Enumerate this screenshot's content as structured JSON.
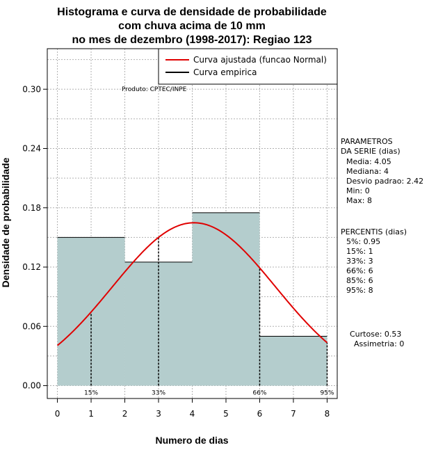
{
  "chart_data": {
    "type": "bar",
    "title": [
      "Histograma e curva de densidade de probabilidade",
      "com chuva acima de 10 mm",
      "no mes de dezembro (1998-2017): Regiao 123"
    ],
    "xlabel": "Numero de dias",
    "ylabel": "Densidade de probabilidade",
    "xlim": [
      -0.3,
      8.3
    ],
    "ylim": [
      -0.013,
      0.341
    ],
    "x_ticks": [
      "0",
      "1",
      "2",
      "3",
      "4",
      "5",
      "6",
      "7",
      "8"
    ],
    "y_ticks": [
      "0.00",
      "0.06",
      "0.12",
      "0.18",
      "0.24",
      "0.30"
    ],
    "bins": [
      {
        "start": 0,
        "end": 2,
        "density": 0.15
      },
      {
        "start": 2,
        "end": 4,
        "density": 0.125
      },
      {
        "start": 4,
        "end": 6,
        "density": 0.175
      },
      {
        "start": 6,
        "end": 8,
        "density": 0.05
      }
    ],
    "fitted_curve": {
      "mean": 4.05,
      "sd": 2.42,
      "x_range": [
        0,
        8
      ]
    },
    "percentile_markers": [
      {
        "x": 1,
        "label": "15%"
      },
      {
        "x": 3,
        "label": "33%"
      },
      {
        "x": 6,
        "label": "66%"
      },
      {
        "x": 8,
        "label": "95%"
      }
    ],
    "legend": {
      "position": "top-right",
      "entries": [
        {
          "label": "Curva ajustada (funcao Normal)",
          "color": "#e00000"
        },
        {
          "label": "Curva empirica",
          "color": "#000000"
        }
      ]
    },
    "annotations": {
      "product": "Produto: CPTEC/INPE",
      "parameters_title": [
        "PARAMETROS",
        "DA SERIE (dias)"
      ],
      "parameters": [
        "Media: 4.05",
        "Mediana: 4",
        "Desvio padrao: 2.42",
        "Min: 0",
        "Max: 8"
      ],
      "percentiles_title": "PERCENTIS (dias)",
      "percentiles": [
        "5%: 0.95",
        "15%: 1",
        "33%: 3",
        "66%: 6",
        "85%: 6",
        "95%: 8"
      ],
      "shape": [
        "Curtose: 0.53",
        "Assimetria: 0"
      ]
    },
    "grid": true,
    "colors": {
      "bar_fill": "#b4cdcd",
      "curve": "#e00000",
      "grid": "#b0b0b0"
    }
  }
}
